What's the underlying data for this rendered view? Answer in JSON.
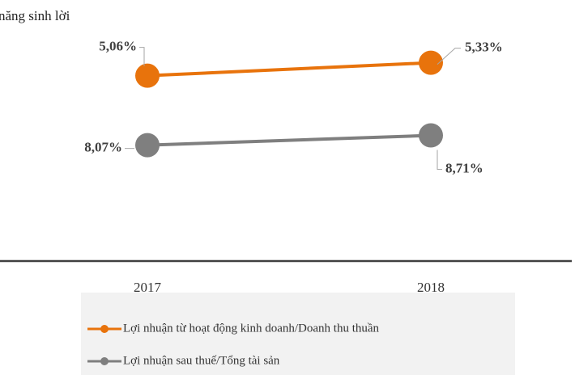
{
  "chart_data": {
    "type": "line",
    "title": "năng sinh lời",
    "categories": [
      "2017",
      "2018"
    ],
    "series": [
      {
        "name": "Lợi nhuận từ hoạt động kinh doanh/Doanh thu thuần",
        "color": "#e8730c",
        "axis": "y2",
        "values": [
          5.06,
          5.33
        ],
        "value_labels": [
          "5,06%",
          "5,33%"
        ]
      },
      {
        "name": "Lợi nhuận sau thuế/Tổng tài sản",
        "color": "#7f7f7f",
        "values": [
          8.07,
          8.71
        ],
        "value_labels": [
          "8,07%",
          "8,71%"
        ]
      }
    ],
    "ylim": [
      0.5,
      16.5
    ],
    "y2lim": [
      1.2,
      6.3
    ]
  }
}
